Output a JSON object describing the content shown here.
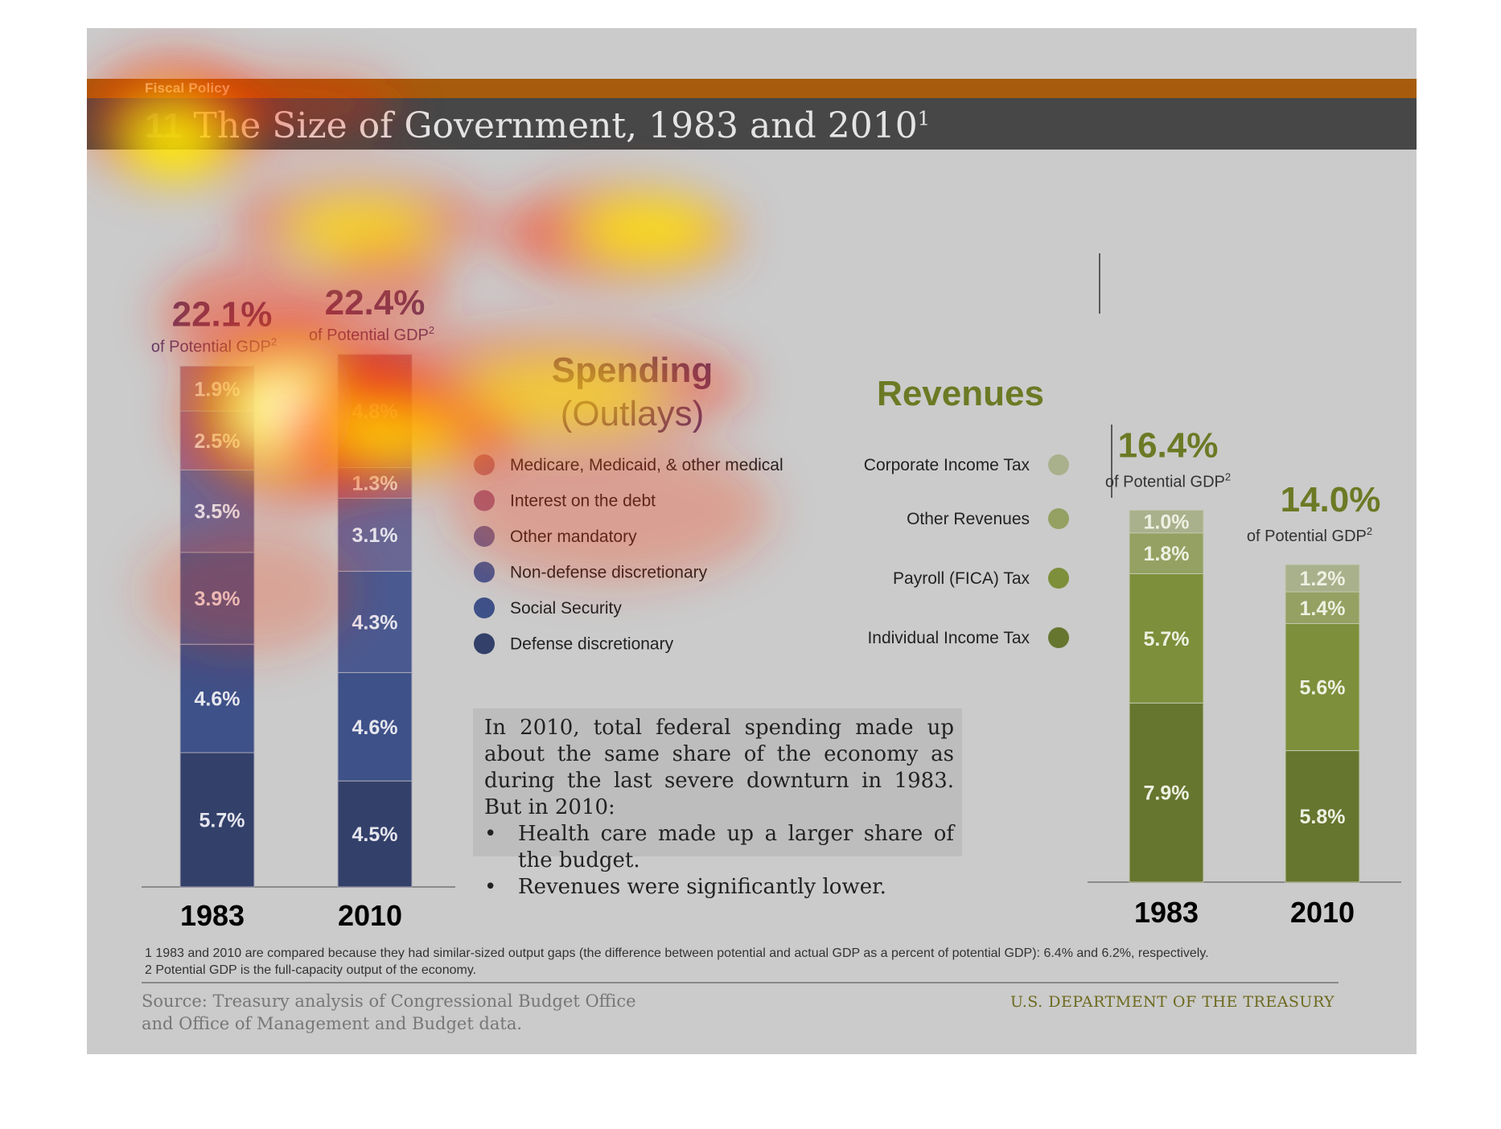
{
  "header": {
    "kicker": "Fiscal Policy",
    "number": "11",
    "title": "The Size of Government, 1983 and 2010",
    "title_note": "1"
  },
  "chart_data": [
    {
      "type": "bar",
      "stacked": true,
      "title": "Spending",
      "subtitle": "(Outlays)",
      "categories": [
        "1983",
        "2010"
      ],
      "totals": [
        "22.1%",
        "22.4%"
      ],
      "total_caption": "of Potential GDP",
      "total_caption_note": "2",
      "series": [
        {
          "name": "Defense discretionary",
          "values": [
            5.7,
            4.5
          ],
          "color": "#33406a"
        },
        {
          "name": "Social Security",
          "values": [
            4.6,
            4.6
          ],
          "color": "#3e5188"
        },
        {
          "name": "Non-defense discretionary",
          "values": [
            3.9,
            4.3
          ],
          "color": "#4a5a90"
        },
        {
          "name": "Other mandatory",
          "values": [
            3.5,
            3.1
          ],
          "color": "#6a6794"
        },
        {
          "name": "Interest on the debt",
          "values": [
            2.5,
            1.3
          ],
          "color": "#98688a"
        },
        {
          "name": "Medicare, Medicaid, & other medical",
          "values": [
            1.9,
            4.8
          ],
          "color": "#a97a82"
        }
      ],
      "value_labels": [
        [
          "5.7%",
          "4.6%",
          "3.9%",
          "3.5%",
          "2.5%",
          "1.9%"
        ],
        [
          "4.5%",
          "4.6%",
          "4.3%",
          "3.1%",
          "1.3%",
          "4.8%"
        ]
      ],
      "legend_order": [
        "Medicare, Medicaid, & other medical",
        "Interest on the debt",
        "Other mandatory",
        "Non-defense discretionary",
        "Social Security",
        "Defense discretionary"
      ],
      "legend_placement": "right"
    },
    {
      "type": "bar",
      "stacked": true,
      "title": "Revenues",
      "categories": [
        "1983",
        "2010"
      ],
      "totals": [
        "16.4%",
        "14.0%"
      ],
      "total_caption": "of Potential GDP",
      "total_caption_note": "2",
      "series": [
        {
          "name": "Individual Income Tax",
          "values": [
            7.9,
            5.8
          ],
          "color": "#66762f"
        },
        {
          "name": "Payroll (FICA) Tax",
          "values": [
            5.7,
            5.6
          ],
          "color": "#7d8f3a"
        },
        {
          "name": "Other Revenues",
          "values": [
            1.8,
            1.4
          ],
          "color": "#94a162"
        },
        {
          "name": "Corporate Income Tax",
          "values": [
            1.0,
            1.2
          ],
          "color": "#a9b08c"
        }
      ],
      "value_labels": [
        [
          "7.9%",
          "5.7%",
          "1.8%",
          "1.0%"
        ],
        [
          "5.8%",
          "5.6%",
          "1.4%",
          "1.2%"
        ]
      ],
      "legend_order": [
        "Corporate Income Tax",
        "Other Revenues",
        "Payroll (FICA) Tax",
        "Individual Income Tax"
      ],
      "legend_placement": "left"
    }
  ],
  "callout": {
    "text": "In 2010, total federal spending made up about the same share of the economy as during the last severe downturn in 1983. But in 2010:",
    "bullets": [
      "Health care made up a larger share of the budget.",
      "Revenues were significantly lower."
    ]
  },
  "footnotes": [
    "1 1983 and 2010 are compared because they had similar-sized output gaps (the difference between potential and actual GDP as a percent of potential GDP): 6.4% and 6.2%, respectively.",
    "2 Potential GDP is the full-capacity output of the economy."
  ],
  "footer": {
    "source_line1": "Source: Treasury analysis of Congressional Budget Office",
    "source_line2": "and Office of Management and Budget data.",
    "agency": "U.S. DEPARTMENT OF THE TREASURY"
  },
  "heatmap_overlay": {
    "colors": [
      "#ff2a00",
      "#ffff00",
      "#ffffff"
    ]
  }
}
